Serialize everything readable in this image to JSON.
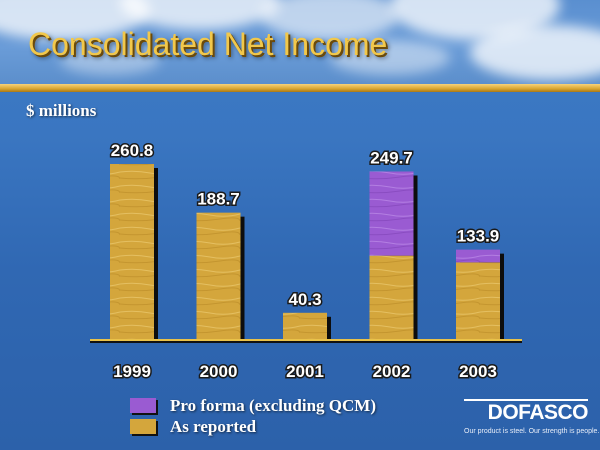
{
  "title": "Consolidated Net Income",
  "unit_label": "$ millions",
  "colors": {
    "as_reported": "#d4a63c",
    "pro_forma": "#9a5bd2",
    "title": "#f2c84b",
    "baseline": "#e9c24a"
  },
  "chart_data": {
    "type": "bar",
    "stacked": true,
    "title": "Consolidated Net Income",
    "ylabel": "$ millions",
    "categories": [
      "1999",
      "2000",
      "2001",
      "2002",
      "2003"
    ],
    "series": [
      {
        "name": "As reported",
        "values": [
          260.8,
          188.7,
          40.3,
          125,
          115
        ],
        "color": "#d4a63c"
      },
      {
        "name": "Pro forma (excluding QCM)",
        "values": [
          0,
          0,
          0,
          124.7,
          18.9
        ],
        "color": "#9a5bd2"
      }
    ],
    "totals": [
      260.8,
      188.7,
      40.3,
      249.7,
      133.9
    ],
    "data_labels": [
      "260.8",
      "188.7",
      "40.3",
      "249.7",
      "133.9"
    ],
    "ylim": [
      0,
      260.8
    ],
    "grid": false,
    "legend_position": "bottom-left"
  },
  "legend": [
    {
      "label": "Pro forma (excluding QCM)",
      "color": "#9a5bd2"
    },
    {
      "label": "As reported",
      "color": "#d4a63c"
    }
  ],
  "logo": {
    "name": "DOFASCO",
    "tagline": "Our product is steel. Our strength is people."
  }
}
